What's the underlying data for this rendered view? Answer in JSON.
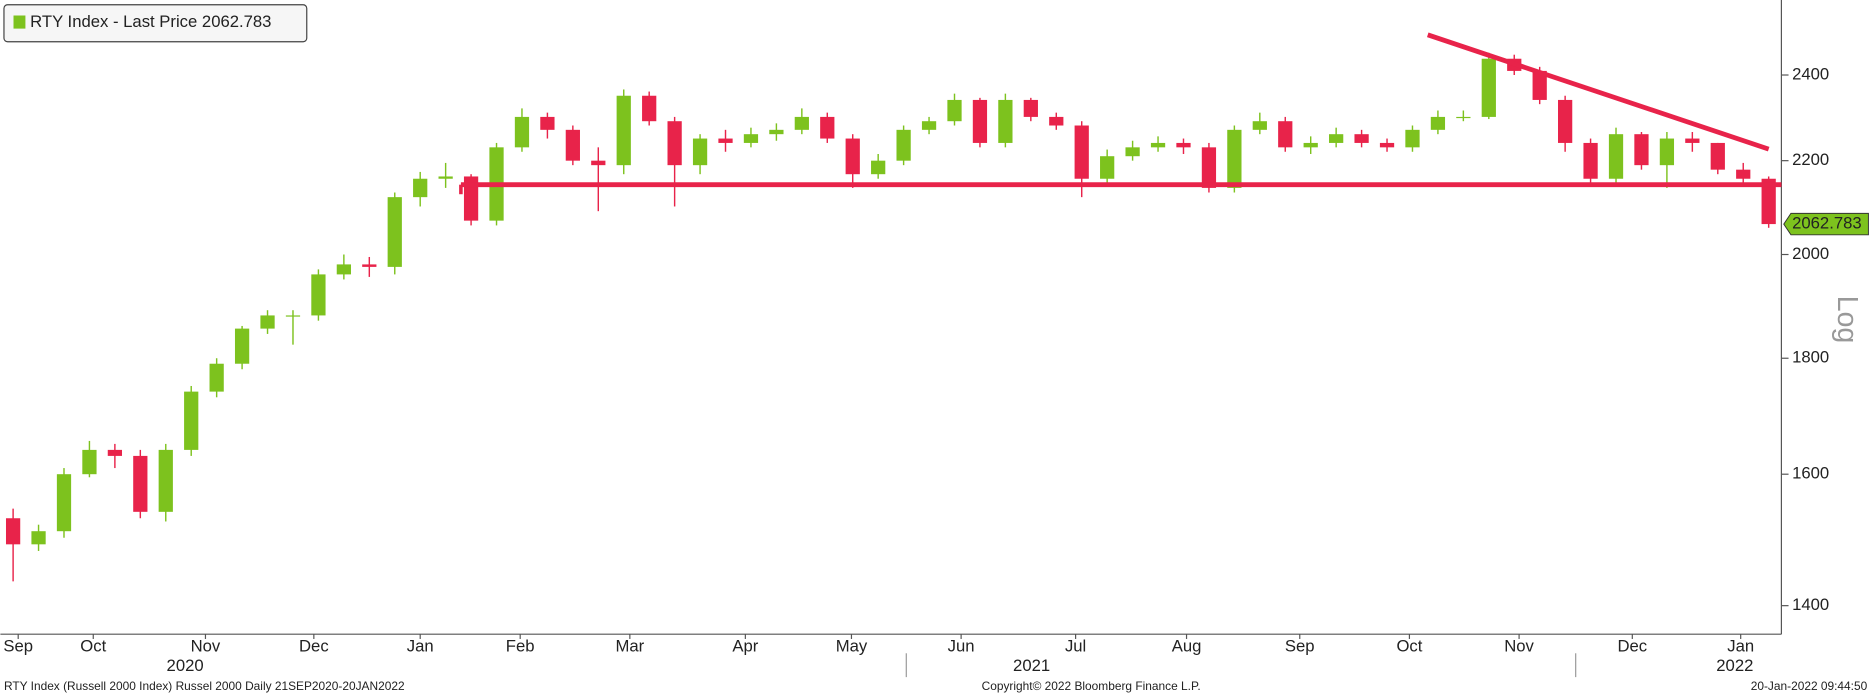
{
  "chart_data": {
    "type": "candlestick",
    "log_scale": true,
    "series": [
      {
        "name": "RTY Index - Last Price 2062.783",
        "color": "#7dc21e",
        "down_color": "#e8234a",
        "open": [
          1530,
          1490,
          1510,
          1600,
          1640,
          1630,
          1540,
          1640,
          1740,
          1790,
          1855,
          1880,
          1880,
          1960,
          1980,
          1975,
          2120,
          2160,
          2165,
          2070,
          2230,
          2300,
          2270,
          2200,
          2190,
          2350,
          2290,
          2190,
          2250,
          2240,
          2260,
          2270,
          2300,
          2250,
          2170,
          2200,
          2270,
          2290,
          2340,
          2240,
          2340,
          2300,
          2280,
          2160,
          2210,
          2230,
          2240,
          2230,
          2140,
          2270,
          2290,
          2230,
          2240,
          2260,
          2240,
          2230,
          2270,
          2300,
          2300,
          2440,
          2410,
          2340,
          2240,
          2160,
          2260,
          2190,
          2250,
          2240,
          2180,
          2160
        ],
        "high": [
          1545,
          1520,
          1610,
          1655,
          1650,
          1640,
          1650,
          1750,
          1800,
          1860,
          1890,
          1890,
          1970,
          2000,
          1995,
          2130,
          2175,
          2195,
          2170,
          2240,
          2320,
          2310,
          2280,
          2230,
          2365,
          2360,
          2300,
          2260,
          2270,
          2275,
          2285,
          2320,
          2310,
          2260,
          2215,
          2280,
          2300,
          2355,
          2345,
          2355,
          2345,
          2310,
          2290,
          2225,
          2245,
          2255,
          2250,
          2240,
          2280,
          2310,
          2300,
          2255,
          2275,
          2270,
          2250,
          2280,
          2315,
          2315,
          2455,
          2450,
          2420,
          2350,
          2250,
          2275,
          2265,
          2265,
          2265,
          2240,
          2195,
          2165
        ],
        "low": [
          1435,
          1480,
          1500,
          1595,
          1610,
          1530,
          1525,
          1630,
          1730,
          1780,
          1845,
          1825,
          1870,
          1950,
          1955,
          1960,
          2100,
          2140,
          2060,
          2060,
          2220,
          2250,
          2190,
          2090,
          2170,
          2280,
          2100,
          2170,
          2220,
          2230,
          2245,
          2260,
          2240,
          2140,
          2160,
          2190,
          2260,
          2280,
          2230,
          2230,
          2290,
          2270,
          2120,
          2150,
          2200,
          2220,
          2215,
          2130,
          2130,
          2260,
          2220,
          2215,
          2230,
          2230,
          2220,
          2220,
          2260,
          2290,
          2295,
          2400,
          2330,
          2220,
          2150,
          2150,
          2180,
          2140,
          2220,
          2170,
          2150,
          2055
        ],
        "close": [
          1490,
          1510,
          1600,
          1640,
          1630,
          1540,
          1640,
          1740,
          1790,
          1855,
          1880,
          1880,
          1960,
          1980,
          1975,
          2120,
          2160,
          2165,
          2070,
          2230,
          2300,
          2270,
          2200,
          2190,
          2350,
          2290,
          2190,
          2250,
          2240,
          2260,
          2270,
          2300,
          2250,
          2170,
          2200,
          2270,
          2290,
          2340,
          2240,
          2340,
          2300,
          2280,
          2160,
          2210,
          2230,
          2240,
          2230,
          2140,
          2270,
          2290,
          2230,
          2240,
          2260,
          2240,
          2230,
          2270,
          2300,
          2300,
          2440,
          2410,
          2340,
          2240,
          2160,
          2260,
          2190,
          2250,
          2240,
          2180,
          2160,
          2062.783
        ]
      }
    ],
    "ylim": [
      1360,
      2590
    ],
    "yticks": [
      1400,
      1600,
      1800,
      2000,
      2200,
      2400
    ],
    "y_axis_label": "Log",
    "xlim": [
      -0.5,
      69.5
    ],
    "xticks": [
      {
        "value": 0.2,
        "label": "Sep"
      },
      {
        "value": 3.15,
        "label": "Oct"
      },
      {
        "value": 7.56,
        "label": "Nov"
      },
      {
        "value": 11.82,
        "label": "Dec"
      },
      {
        "value": 16.0,
        "label": "Jan"
      },
      {
        "value": 19.93,
        "label": "Feb"
      },
      {
        "value": 24.24,
        "label": "Mar"
      },
      {
        "value": 28.78,
        "label": "Apr"
      },
      {
        "value": 32.95,
        "label": "May"
      },
      {
        "value": 37.26,
        "label": "Jun"
      },
      {
        "value": 41.76,
        "label": "Jul"
      },
      {
        "value": 46.12,
        "label": "Aug"
      },
      {
        "value": 50.57,
        "label": "Sep"
      },
      {
        "value": 54.88,
        "label": "Oct"
      },
      {
        "value": 59.19,
        "label": "Nov"
      },
      {
        "value": 63.64,
        "label": "Dec"
      },
      {
        "value": 67.9,
        "label": "Jan"
      }
    ],
    "year_labels": [
      {
        "value": 6.76,
        "label": "2020"
      },
      {
        "value": 40.03,
        "label": "2021"
      },
      {
        "value": 67.67,
        "label": "2022"
      }
    ],
    "trendlines": [
      {
        "color": "#e8234a",
        "x": [
          17.6,
          69.5
        ],
        "y": [
          2147,
          2147
        ]
      },
      {
        "color": "#e8234a",
        "x": [
          55.6,
          69.0
        ],
        "y": [
          2500,
          2226
        ]
      }
    ],
    "legend": "upper left",
    "footer": {
      "left": "RTY Index (Russell 2000 Index) Russel 2000  Daily 21SEP2020-20JAN2022",
      "center": "Copyright© 2022 Bloomberg Finance L.P.",
      "right": "20-Jan-2022 09:44:50"
    }
  }
}
